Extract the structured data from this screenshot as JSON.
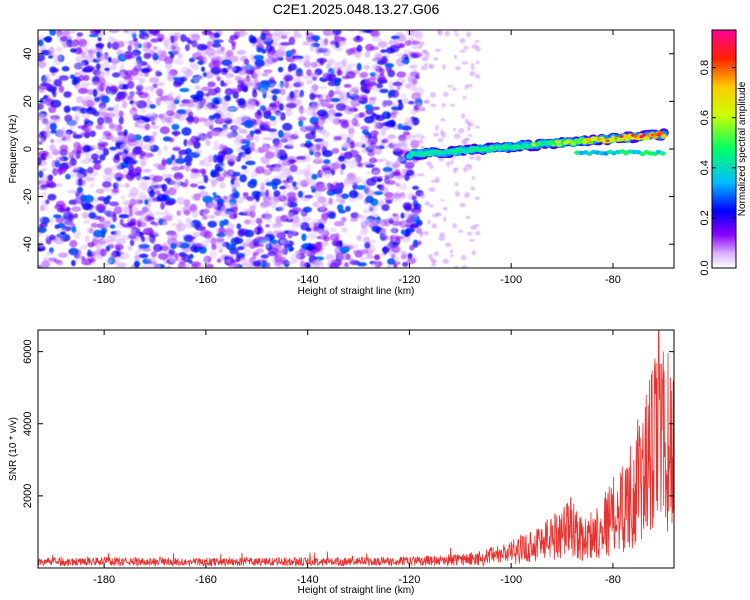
{
  "title": "C2E1.2025.048.13.27.G06",
  "chart_data": [
    {
      "type": "heatmap",
      "xlabel": "Height of straight line (km)",
      "ylabel": "Frequency (Hz)",
      "xlim": [
        -193,
        -68
      ],
      "ylim": [
        -50,
        50
      ],
      "x_ticks": [
        -180,
        -160,
        -140,
        -120,
        -100,
        -80
      ],
      "y_ticks": [
        -40,
        -20,
        0,
        20,
        40
      ],
      "colorbar": {
        "label": "Normalized spectral amplitude",
        "range": [
          0,
          0.95
        ],
        "ticks": [
          0.0,
          0.2,
          0.4,
          0.6,
          0.8
        ],
        "colormap": [
          "#ffffff",
          "#d9b3ff",
          "#8b00ff",
          "#0000ff",
          "#00bfff",
          "#00ff66",
          "#c8ff00",
          "#ffcc00",
          "#ff2200",
          "#ff0099"
        ]
      },
      "signal_track": {
        "description_free": true,
        "x_start": -120,
        "x_end": -70,
        "freq_start": -2.5,
        "freq_end": 6,
        "peak_amplitude": 0.9
      },
      "noise_region": {
        "x_start": -193,
        "x_end": -118,
        "amplitude_range": [
          0.05,
          0.3
        ]
      },
      "grid": false
    },
    {
      "type": "line",
      "xlabel": "Height of straight line (km)",
      "ylabel": "SNR (10 * v/v)",
      "xlim": [
        -193,
        -68
      ],
      "ylim": [
        0,
        6600
      ],
      "x_ticks": [
        -180,
        -160,
        -140,
        -120,
        -100,
        -80
      ],
      "y_ticks": [
        2000,
        4000,
        6000
      ],
      "series": [
        {
          "color": "#e8322f",
          "envelope_points": [
            [
              -193,
              250
            ],
            [
              -180,
              260
            ],
            [
              -160,
              250
            ],
            [
              -140,
              260
            ],
            [
              -125,
              270
            ],
            [
              -115,
              320
            ],
            [
              -108,
              420
            ],
            [
              -103,
              550
            ],
            [
              -100,
              700
            ],
            [
              -97,
              900
            ],
            [
              -94,
              1200
            ],
            [
              -91,
              1500
            ],
            [
              -88,
              1900
            ],
            [
              -86,
              1200
            ],
            [
              -84,
              1500
            ],
            [
              -82,
              1900
            ],
            [
              -80,
              2300
            ],
            [
              -77,
              3000
            ],
            [
              -74,
              4200
            ],
            [
              -71,
              5800
            ],
            [
              -68,
              5200
            ]
          ],
          "peak": [
            -71,
            6600
          ]
        }
      ],
      "grid": false
    }
  ]
}
